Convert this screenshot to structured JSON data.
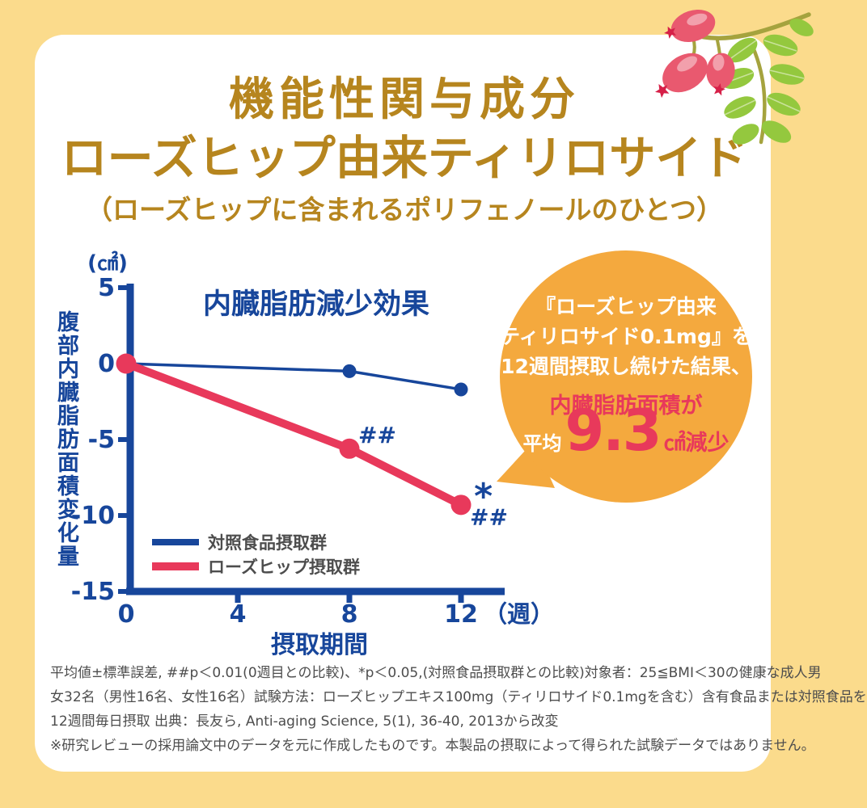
{
  "page": {
    "title_line1": "機能性関与成分",
    "title_line2": "ローズヒップ由来ティリロサイド",
    "subtitle": "（ローズヒップに含まれるポリフェノールのひとつ）"
  },
  "colors": {
    "background": "#FBDB8C",
    "card": "#FFFFFF",
    "gold": "#B6851E",
    "dark_blue": "#17469B",
    "crimson": "#E8395B",
    "bubble_orange": "#F4A93E",
    "footnote_gray": "#4D4D4D"
  },
  "chart_data": {
    "type": "line",
    "title": "内臓脂肪減少効果",
    "xlabel": "摂取期間",
    "ylabel": "腹部内臓脂肪面積変化量",
    "y_unit": "(㎠)",
    "x_unit": "（週）",
    "xlim": [
      0,
      13.5
    ],
    "ylim": [
      -15,
      5
    ],
    "x_ticks": [
      0,
      4,
      8,
      12
    ],
    "y_ticks": [
      5,
      0,
      -5,
      -10,
      -15
    ],
    "grid": false,
    "legend_position": "lower-left-inside",
    "series": [
      {
        "name": "対照食品摂取群",
        "color": "#17469B",
        "line_width": 3.5,
        "dot_radius": 8.5,
        "values": [
          [
            0,
            0
          ],
          [
            8,
            -0.5
          ],
          [
            12,
            -1.7
          ]
        ]
      },
      {
        "name": "ローズヒップ摂取群",
        "color": "#E8395B",
        "line_width": 10,
        "dot_radius": 12.5,
        "values": [
          [
            0,
            0
          ],
          [
            8,
            -5.6
          ],
          [
            12,
            -9.3
          ]
        ]
      }
    ],
    "annotations": [
      {
        "text": "##",
        "x": 9.0,
        "y": -4.7,
        "size": 28
      },
      {
        "text": "*",
        "x": 12.8,
        "y": -8.7,
        "size": 44
      },
      {
        "text": "##",
        "x": 13.0,
        "y": -10.1,
        "size": 28
      }
    ]
  },
  "bubble": {
    "line1": "『ローズヒップ由来",
    "line2": "ティリロサイド0.1mg』を",
    "line3": "12週間摂取し続けた結果、",
    "line4": "内臓脂肪面積が",
    "avg_label": "平均",
    "value": "9.3",
    "unit_suffix": "㎠減少"
  },
  "footnotes": [
    "平均値±標準誤差, ##p＜0.01(0週目との比較)、*p＜0.05,(対照食品摂取群との比較)対象者：25≦BMI＜30の健康な成人男",
    "女32名（男性16名、女性16名）試験方法：ローズヒップエキス100mg（ティリロサイド0.1mgを含む）含有食品または対照食品を",
    "12週間毎日摂取 出典：長友ら, Anti-aging Science, 5(1), 36-40, 2013から改変",
    "※研究レビューの採用論文中のデータを元に作成したものです。本製品の摂取によって得られた試験データではありません。"
  ]
}
